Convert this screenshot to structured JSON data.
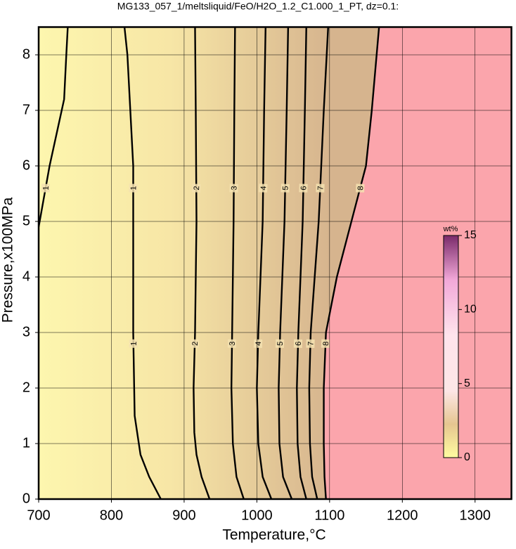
{
  "chart_data": {
    "type": "contour",
    "title": "MG133_057_1/meltsliquid/FeO/H2O_1.2_C1.000_1_PT, dz=0.1:",
    "xlabel": "Temperature,°C",
    "ylabel": "Pressure,x100MPa",
    "xlim": [
      700,
      1350
    ],
    "ylim": [
      0,
      8.5
    ],
    "xticks": [
      700,
      800,
      900,
      1000,
      1100,
      1200,
      1300
    ],
    "yticks": [
      0,
      1,
      2,
      3,
      4,
      5,
      6,
      7,
      8
    ],
    "grid": true,
    "mask_color": "#fba5ac",
    "contours": [
      {
        "level": 1,
        "x": [
          740,
          738,
          735,
          725,
          715,
          700
        ],
        "y": [
          8.5,
          8.0,
          7.2,
          6.6,
          6.0,
          4.9
        ]
      },
      {
        "level": 1,
        "x": [
          818,
          822,
          826,
          830,
          830,
          830,
          832,
          840,
          852,
          868
        ],
        "y": [
          8.5,
          8.0,
          7.0,
          6.0,
          5.0,
          3.0,
          1.5,
          0.8,
          0.4,
          0
        ]
      },
      {
        "level": 2,
        "x": [
          915,
          916,
          917,
          915,
          913,
          914,
          917,
          924,
          935
        ],
        "y": [
          8.5,
          7.0,
          5.0,
          3.0,
          2.0,
          1.2,
          0.8,
          0.4,
          0
        ]
      },
      {
        "level": 3,
        "x": [
          970,
          969,
          968,
          966,
          965,
          967,
          972,
          982
        ],
        "y": [
          8.5,
          7.0,
          5.0,
          3.0,
          2.0,
          1.0,
          0.4,
          0
        ]
      },
      {
        "level": 4,
        "x": [
          1012,
          1010,
          1008,
          1002,
          1000,
          1002,
          1008,
          1020
        ],
        "y": [
          8.5,
          7.0,
          5.0,
          3.0,
          2.0,
          1.0,
          0.4,
          0
        ]
      },
      {
        "level": 5,
        "x": [
          1043,
          1041,
          1038,
          1032,
          1030,
          1031,
          1036,
          1048
        ],
        "y": [
          8.5,
          7.0,
          5.0,
          3.0,
          2.0,
          1.0,
          0.4,
          0
        ]
      },
      {
        "level": 6,
        "x": [
          1068,
          1066,
          1063,
          1057,
          1055,
          1056,
          1060,
          1068
        ],
        "y": [
          8.5,
          7.0,
          5.0,
          3.0,
          2.0,
          1.0,
          0.4,
          0
        ]
      },
      {
        "level": 7,
        "x": [
          1098,
          1092,
          1085,
          1074,
          1072,
          1073,
          1076,
          1083
        ],
        "y": [
          8.5,
          7.0,
          5.0,
          3.0,
          2.0,
          1.0,
          0.4,
          0
        ]
      },
      {
        "level": 8,
        "x": [
          1168,
          1158,
          1150,
          1130,
          1110,
          1095,
          1092,
          1092,
          1093,
          1095
        ],
        "y": [
          8.5,
          7.0,
          6.0,
          5.0,
          4.0,
          3.0,
          2.0,
          1.0,
          0.4,
          0
        ]
      }
    ],
    "label_pressures": [
      5.6,
      2.8
    ],
    "colorbar": {
      "label": "wt%",
      "lim": [
        0,
        15
      ],
      "ticks": [
        0,
        5,
        10,
        15
      ]
    }
  }
}
